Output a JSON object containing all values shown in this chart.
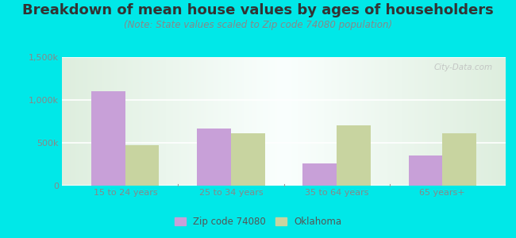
{
  "title": "Breakdown of mean house values by ages of householders",
  "subtitle": "(Note: State values scaled to Zip code 74080 population)",
  "categories": [
    "15 to 24 years",
    "25 to 34 years",
    "35 to 64 years",
    "65 years+"
  ],
  "zip_values": [
    1100000,
    670000,
    260000,
    350000
  ],
  "state_values": [
    470000,
    610000,
    700000,
    615000
  ],
  "zip_color": "#c8a0d8",
  "state_color": "#c8d4a0",
  "background_color": "#00e8e8",
  "plot_bg_left": "#d8ecd8",
  "plot_bg_center": "#f5faf5",
  "plot_bg_right": "#eaf0e0",
  "ylim": [
    0,
    1500000
  ],
  "yticks": [
    0,
    500000,
    1000000,
    1500000
  ],
  "ytick_labels": [
    "0",
    "500k",
    "1,000k",
    "1,500k"
  ],
  "legend_labels": [
    "Zip code 74080",
    "Oklahoma"
  ],
  "title_fontsize": 13,
  "subtitle_fontsize": 8.5,
  "bar_width": 0.32,
  "title_color": "#333333",
  "subtitle_color": "#888888",
  "tick_color": "#888888"
}
